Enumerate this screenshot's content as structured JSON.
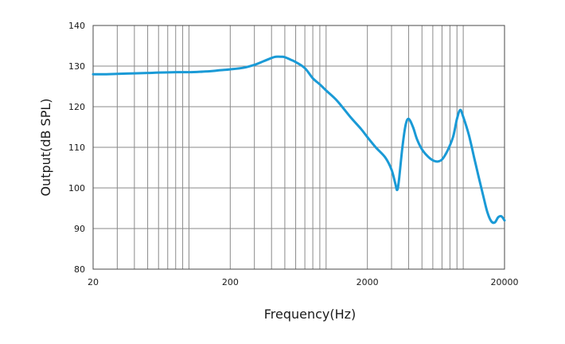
{
  "chart_data": {
    "type": "line",
    "title": "",
    "xlabel": "Frequency(Hz)",
    "ylabel": "Output(dB SPL)",
    "x_scale": "log",
    "xlim": [
      20,
      20000
    ],
    "ylim": [
      80,
      140
    ],
    "x_ticks": [
      20,
      200,
      2000,
      20000
    ],
    "x_tick_labels": [
      "20",
      "200",
      "2000",
      "20000"
    ],
    "y_ticks": [
      80,
      90,
      100,
      110,
      120,
      130,
      140
    ],
    "y_tick_labels": [
      "80",
      "90",
      "100",
      "110",
      "120",
      "130",
      "140"
    ],
    "grid": true,
    "line_color": "#1a9ad6",
    "series": [
      {
        "x": [
          20,
          25,
          30,
          40,
          50,
          60,
          80,
          100,
          120,
          150,
          170,
          200,
          250,
          300,
          350,
          400,
          430,
          470,
          500,
          550,
          600,
          700,
          800,
          900,
          1000,
          1200,
          1500,
          1800,
          2000,
          2300,
          2700,
          3000,
          3200,
          3300,
          3400,
          3600,
          3800,
          4000,
          4300,
          4600,
          5000,
          5500,
          6000,
          6500,
          7000,
          7500,
          8000,
          8500,
          9000,
          9500,
          10000,
          11000,
          12000,
          13000,
          14000,
          15000,
          16000,
          17000,
          18000,
          19000,
          20000
        ],
        "y": [
          128,
          128,
          128.1,
          128.2,
          128.3,
          128.4,
          128.5,
          128.5,
          128.6,
          128.8,
          129,
          129.2,
          129.6,
          130.3,
          131.2,
          132,
          132.3,
          132.3,
          132.2,
          131.6,
          131,
          129.5,
          127,
          125.5,
          124,
          121.5,
          117.5,
          114.5,
          112.5,
          110,
          107.5,
          104.5,
          101,
          99.5,
          102,
          110,
          115.5,
          117,
          115,
          112,
          109.5,
          107.8,
          106.8,
          106.5,
          107,
          108.5,
          110.5,
          113,
          117,
          119.2,
          117.5,
          113,
          107.5,
          102.5,
          98,
          94,
          91.8,
          91.5,
          92.8,
          93,
          92
        ]
      }
    ]
  }
}
